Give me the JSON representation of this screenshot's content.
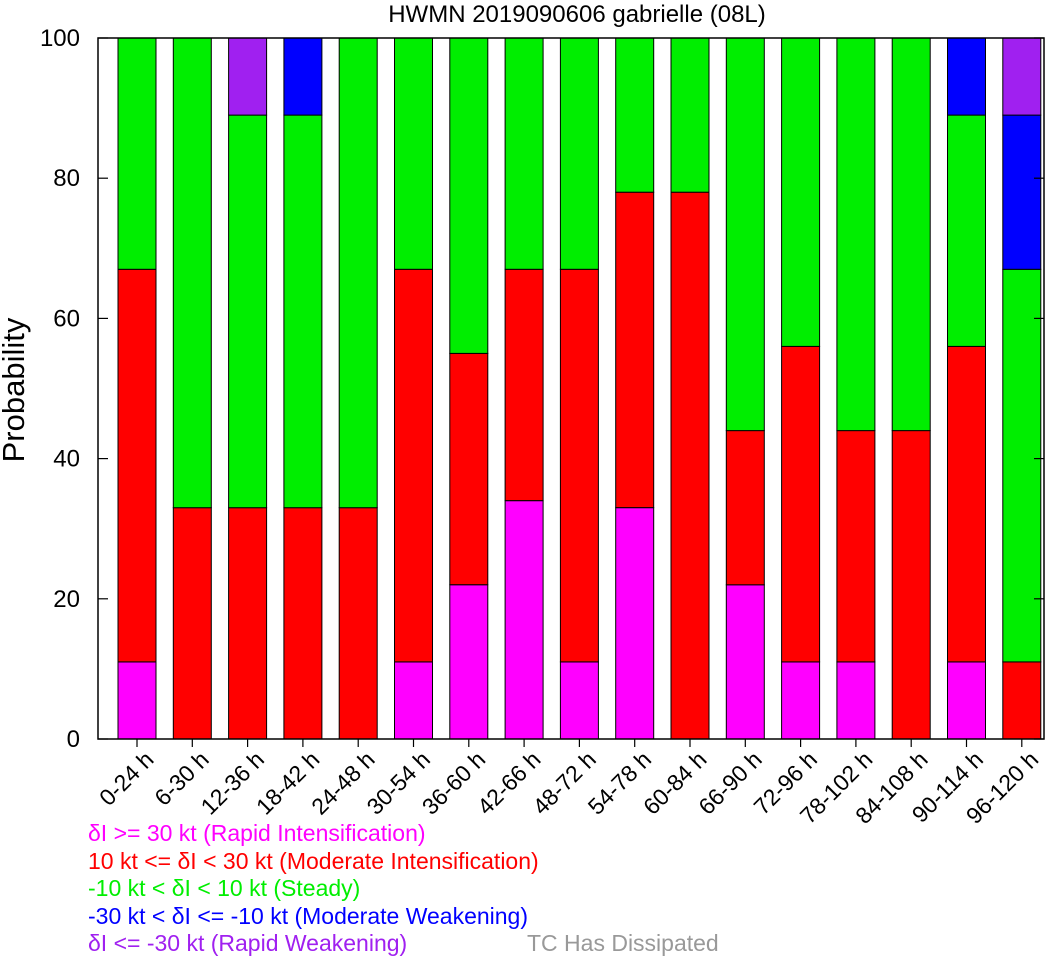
{
  "chart_data": {
    "type": "bar",
    "stacked": true,
    "title": "HWMN 2019090606 gabrielle (08L)",
    "xlabel": "",
    "ylabel": "Probability",
    "ylim": [
      0,
      100
    ],
    "yticks": [
      0,
      20,
      40,
      60,
      80,
      100
    ],
    "grid": false,
    "categories": [
      "0-24 h",
      "6-30 h",
      "12-36 h",
      "18-42 h",
      "24-48 h",
      "30-54 h",
      "36-60 h",
      "42-66 h",
      "48-72 h",
      "54-78 h",
      "60-84 h",
      "66-90 h",
      "72-96 h",
      "78-102 h",
      "84-108 h",
      "90-114 h",
      "96-120 h"
    ],
    "series": [
      {
        "name": "δI >= 30 kt (Rapid Intensification)",
        "color": "#ff00ff",
        "values": [
          11,
          0,
          0,
          0,
          0,
          11,
          22,
          34,
          11,
          33,
          0,
          22,
          11,
          11,
          0,
          11,
          0
        ]
      },
      {
        "name": "10 kt <= δI < 30 kt (Moderate Intensification)",
        "color": "#ff0000",
        "values": [
          56,
          33,
          33,
          33,
          33,
          56,
          33,
          33,
          56,
          45,
          78,
          22,
          45,
          33,
          44,
          45,
          11
        ]
      },
      {
        "name": "-10 kt < δI < 10 kt (Steady)",
        "color": "#00ee00",
        "values": [
          33,
          67,
          56,
          56,
          67,
          33,
          45,
          33,
          33,
          22,
          22,
          56,
          44,
          56,
          56,
          33,
          56
        ]
      },
      {
        "name": "-30 kt < δI <= -10 kt (Moderate Weakening)",
        "color": "#0000ff",
        "values": [
          0,
          0,
          0,
          11,
          0,
          0,
          0,
          0,
          0,
          0,
          0,
          0,
          0,
          0,
          0,
          11,
          22
        ]
      },
      {
        "name": "δI <= -30 kt (Rapid Weakening)",
        "color": "#a020f0",
        "values": [
          0,
          0,
          11,
          0,
          0,
          0,
          0,
          0,
          0,
          0,
          0,
          0,
          0,
          0,
          0,
          0,
          11
        ]
      }
    ],
    "extra_legend": {
      "label": "TC Has Dissipated",
      "color": "#999999"
    },
    "legend_position": "bottom-left"
  }
}
